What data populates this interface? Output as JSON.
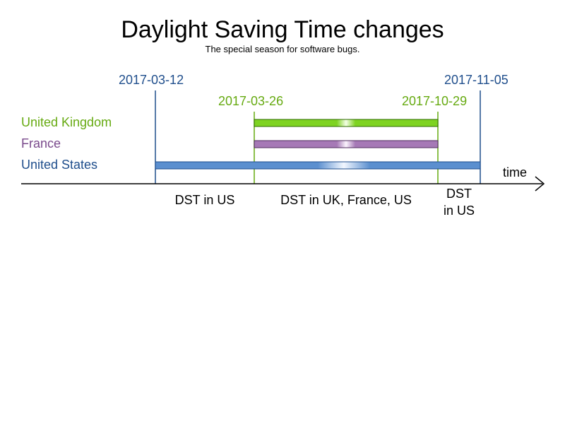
{
  "title": "Daylight Saving Time changes",
  "subtitle": "The special season for software bugs.",
  "axis_label": "time",
  "colors": {
    "uk": "#66aa11",
    "uk_bar": "#7ed321",
    "france": "#7a4a8c",
    "france_bar": "#a679b6",
    "us": "#1f4e8c",
    "us_bar": "#5b8fcf",
    "axis": "#000000"
  },
  "dates": {
    "us_start": "2017-03-12",
    "us_end": "2017-11-05",
    "eu_start": "2017-03-26",
    "eu_end": "2017-10-29"
  },
  "countries": [
    {
      "key": "uk",
      "label": "United Kingdom",
      "start": "2017-03-26",
      "end": "2017-10-29"
    },
    {
      "key": "france",
      "label": "France",
      "start": "2017-03-26",
      "end": "2017-10-29"
    },
    {
      "key": "us",
      "label": "United States",
      "start": "2017-03-12",
      "end": "2017-11-05"
    }
  ],
  "periods": {
    "first": "DST in US",
    "middle": "DST in UK, France, US",
    "last_line1": "DST",
    "last_line2": "in US"
  }
}
